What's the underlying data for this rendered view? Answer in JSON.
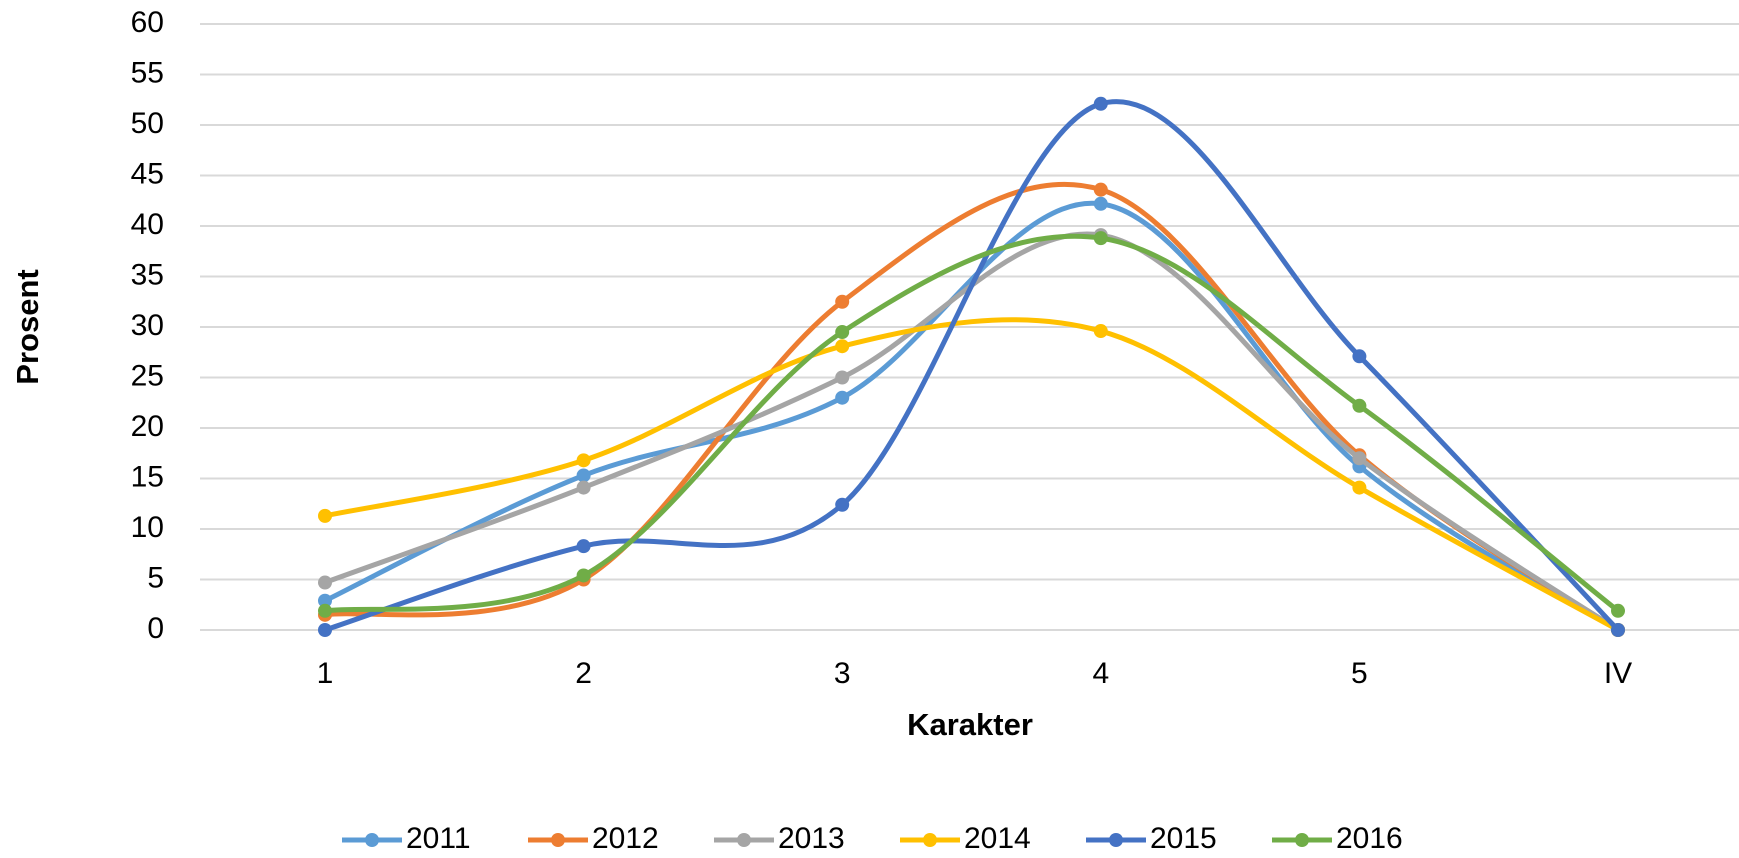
{
  "chart_data": {
    "type": "line",
    "smooth": true,
    "x_label": "Karakter",
    "y_label": "Prosent",
    "categories": [
      "1",
      "2",
      "3",
      "4",
      "5",
      "IV"
    ],
    "series": [
      {
        "name": "2011",
        "color": "#5b9bd5",
        "values": [
          2.9,
          15.3,
          23,
          42.2,
          16.2,
          0
        ]
      },
      {
        "name": "2012",
        "color": "#ed7d31",
        "values": [
          1.5,
          5,
          32.5,
          43.6,
          17.3,
          0
        ]
      },
      {
        "name": "2013",
        "color": "#a5a5a5",
        "values": [
          4.7,
          14.1,
          25,
          39.1,
          17,
          0
        ]
      },
      {
        "name": "2014",
        "color": "#ffc000",
        "values": [
          11.3,
          16.8,
          28.1,
          29.6,
          14.1,
          0
        ]
      },
      {
        "name": "2015",
        "color": "#4472c4",
        "values": [
          0,
          8.3,
          12.4,
          52.1,
          27.1,
          0
        ]
      },
      {
        "name": "2016",
        "color": "#70ad47",
        "values": [
          1.9,
          5.4,
          29.5,
          38.8,
          22.2,
          1.9
        ]
      }
    ],
    "ylim": [
      0,
      60
    ],
    "yticks": [
      0,
      5,
      10,
      15,
      20,
      25,
      30,
      35,
      40,
      45,
      50,
      55,
      60
    ],
    "grid": true,
    "legend": "bottom"
  }
}
